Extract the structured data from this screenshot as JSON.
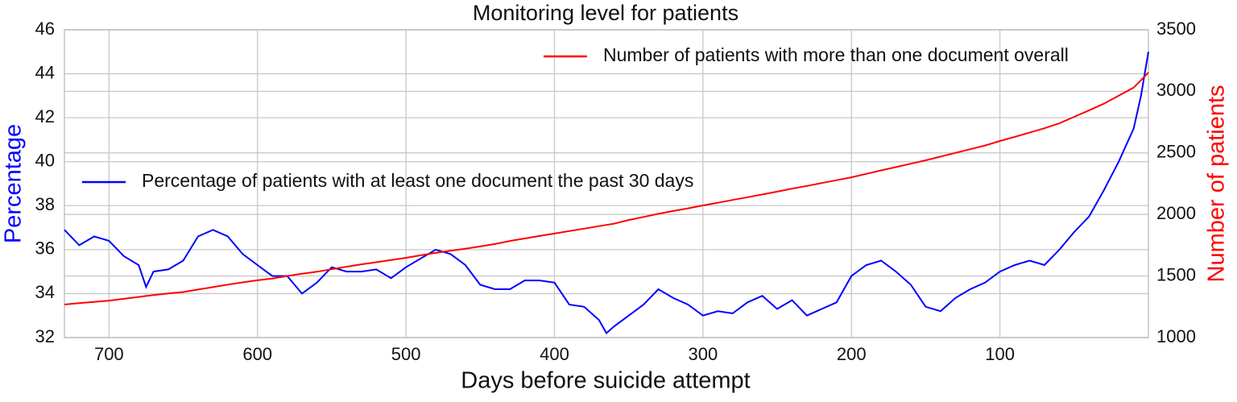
{
  "chart_data": {
    "type": "line",
    "title": "Monitoring level for patients",
    "xlabel": "Days before suicide attempt",
    "ylabel": "Percentage",
    "y2label": "Number of patients",
    "ylabel_color": "#0000ff",
    "y2label_color": "#ff0000",
    "x": [
      730,
      720,
      710,
      700,
      690,
      680,
      675,
      670,
      660,
      650,
      640,
      630,
      620,
      610,
      600,
      590,
      580,
      570,
      560,
      550,
      540,
      530,
      520,
      510,
      500,
      490,
      480,
      470,
      460,
      450,
      440,
      430,
      420,
      410,
      400,
      390,
      380,
      370,
      365,
      360,
      350,
      340,
      330,
      320,
      310,
      300,
      290,
      280,
      270,
      260,
      250,
      240,
      230,
      220,
      210,
      200,
      190,
      180,
      170,
      160,
      150,
      140,
      130,
      120,
      110,
      100,
      90,
      80,
      70,
      60,
      50,
      40,
      30,
      20,
      10,
      5,
      0
    ],
    "xlim": [
      730,
      0
    ],
    "xticks": [
      700,
      600,
      500,
      400,
      300,
      200,
      100
    ],
    "ylim": [
      32,
      46
    ],
    "yticks": [
      32,
      34,
      36,
      38,
      40,
      42,
      44,
      46
    ],
    "y2lim": [
      1000,
      3500
    ],
    "y2ticks": [
      1000,
      1500,
      2000,
      2500,
      3000,
      3500
    ],
    "grid": true,
    "series": [
      {
        "name": "Percentage of patients with at least one document the past 30 days",
        "color": "#0000ff",
        "axis": "y",
        "legend": "center left",
        "values": [
          36.9,
          36.2,
          36.6,
          36.4,
          35.7,
          35.3,
          34.3,
          35.0,
          35.1,
          35.5,
          36.6,
          36.9,
          36.6,
          35.8,
          35.3,
          34.8,
          34.8,
          34.0,
          34.5,
          35.2,
          35.0,
          35.0,
          35.1,
          34.7,
          35.2,
          35.6,
          36.0,
          35.8,
          35.3,
          34.4,
          34.2,
          34.2,
          34.6,
          34.6,
          34.5,
          33.5,
          33.4,
          32.8,
          32.2,
          32.5,
          33.0,
          33.5,
          34.2,
          33.8,
          33.5,
          33.0,
          33.2,
          33.1,
          33.6,
          33.9,
          33.3,
          33.7,
          33.0,
          33.3,
          33.6,
          34.8,
          35.3,
          35.5,
          35.0,
          34.4,
          33.4,
          33.2,
          33.8,
          34.2,
          34.5,
          35.0,
          35.3,
          35.5,
          35.3,
          36.0,
          36.8,
          37.5,
          38.7,
          40.0,
          41.5,
          43.0,
          45.0
        ]
      },
      {
        "name": "Number of patients with more than one document overall",
        "color": "#ff0000",
        "axis": "y2",
        "legend": "upper right",
        "values": [
          1268,
          1280,
          1290,
          1300,
          1315,
          1330,
          1338,
          1345,
          1358,
          1370,
          1390,
          1410,
          1430,
          1448,
          1465,
          1480,
          1500,
          1518,
          1535,
          1555,
          1575,
          1595,
          1612,
          1630,
          1648,
          1668,
          1688,
          1705,
          1722,
          1740,
          1760,
          1785,
          1805,
          1825,
          1845,
          1865,
          1885,
          1905,
          1915,
          1925,
          1955,
          1980,
          2005,
          2028,
          2050,
          2073,
          2095,
          2118,
          2140,
          2162,
          2185,
          2210,
          2232,
          2255,
          2278,
          2302,
          2330,
          2358,
          2385,
          2412,
          2440,
          2470,
          2500,
          2530,
          2560,
          2597,
          2630,
          2665,
          2700,
          2740,
          2793,
          2845,
          2900,
          2965,
          3030,
          3090,
          3153
        ]
      }
    ]
  }
}
